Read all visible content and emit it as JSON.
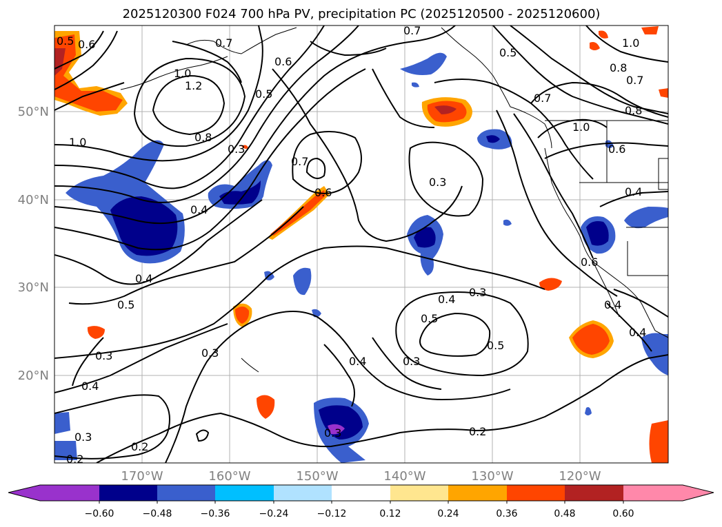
{
  "title": "2025120300 F024 700 hPa PV, precipitation PC (2025120500 - 2025120600)",
  "lat_ticks": [
    "50°N",
    "40°N",
    "30°N",
    "20°N"
  ],
  "lon_ticks": [
    "170°W",
    "160°W",
    "150°W",
    "140°W",
    "130°W",
    "120°W"
  ],
  "colorbar": {
    "ticks": [
      "−0.60",
      "−0.48",
      "−0.36",
      "−0.24",
      "−0.12",
      "0.12",
      "0.24",
      "0.36",
      "0.48",
      "0.60"
    ],
    "colors": [
      "#9932cc",
      "#00008b",
      "#3a5fcd",
      "#00bfff",
      "#b0e2ff",
      "#ffffff",
      "#ffe68f",
      "#ffa500",
      "#ff4500",
      "#b22222",
      "#ff88aa"
    ]
  },
  "contour_labels": [
    {
      "name": "contour-label-0-5-nw",
      "text": "0.5"
    },
    {
      "name": "contour-label-0-6-nw",
      "text": "0.6"
    },
    {
      "name": "contour-label-0-7-top",
      "text": "0.7"
    },
    {
      "name": "contour-label-1-0-west",
      "text": "1.0"
    },
    {
      "name": "contour-label-1-2",
      "text": "1.2"
    },
    {
      "name": "contour-label-0-8-west",
      "text": "0.8"
    },
    {
      "name": "contour-label-1-0-far-west",
      "text": "1.0"
    },
    {
      "name": "contour-label-0-6-gulf",
      "text": "0.6"
    },
    {
      "name": "contour-label-0-5-gulf",
      "text": "0.5"
    },
    {
      "name": "contour-label-0-3-mid",
      "text": "0.3"
    },
    {
      "name": "contour-label-0-7-mid",
      "text": "0.7"
    },
    {
      "name": "contour-label-0-6-mid",
      "text": "0.6"
    },
    {
      "name": "contour-label-0-4-west",
      "text": "0.4"
    },
    {
      "name": "contour-label-0-7-alaska",
      "text": "0.7"
    },
    {
      "name": "contour-label-0-5-alaska",
      "text": "0.5"
    },
    {
      "name": "contour-label-1-0-ne",
      "text": "1.0"
    },
    {
      "name": "contour-label-0-8-ne",
      "text": "0.8"
    },
    {
      "name": "contour-label-0-7-ne",
      "text": "0.7"
    },
    {
      "name": "contour-label-0-8-ne2",
      "text": "0.8"
    },
    {
      "name": "contour-label-0-7-bc",
      "text": "0.7"
    },
    {
      "name": "contour-label-1-0-bc",
      "text": "1.0"
    },
    {
      "name": "contour-label-0-6-bc",
      "text": "0.6"
    },
    {
      "name": "contour-label-0-3-center",
      "text": "0.3"
    },
    {
      "name": "contour-label-0-4-east",
      "text": "0.4"
    },
    {
      "name": "contour-label-0-6-calif",
      "text": "0.6"
    },
    {
      "name": "contour-label-0-4-sw",
      "text": "0.4"
    },
    {
      "name": "contour-label-0-5-sw",
      "text": "0.5"
    },
    {
      "name": "contour-label-0-3-sw",
      "text": "0.3"
    },
    {
      "name": "contour-label-0-4-center",
      "text": "0.4"
    },
    {
      "name": "contour-label-0-3-center-south",
      "text": "0.3"
    },
    {
      "name": "contour-label-0-5-center-south",
      "text": "0.5"
    },
    {
      "name": "contour-label-0-5-south",
      "text": "0.5"
    },
    {
      "name": "contour-label-0-4-baja",
      "text": "0.4"
    },
    {
      "name": "contour-label-0-4-mexico",
      "text": "0.4"
    },
    {
      "name": "contour-label-0-3-hawaii",
      "text": "0.3"
    },
    {
      "name": "contour-label-0-4-hawaii",
      "text": "0.4"
    },
    {
      "name": "contour-label-0-3-south-center",
      "text": "0.3"
    },
    {
      "name": "contour-label-0-2-south",
      "text": "0.2"
    },
    {
      "name": "contour-label-0-4-far-west",
      "text": "0.4"
    },
    {
      "name": "contour-label-0-3-far-sw",
      "text": "0.3"
    },
    {
      "name": "contour-label-0-2-far-sw",
      "text": "0.2"
    },
    {
      "name": "contour-label-0-2-sw2",
      "text": "0.2"
    },
    {
      "name": "contour-label-0-3-east2",
      "text": "0.3"
    }
  ]
}
